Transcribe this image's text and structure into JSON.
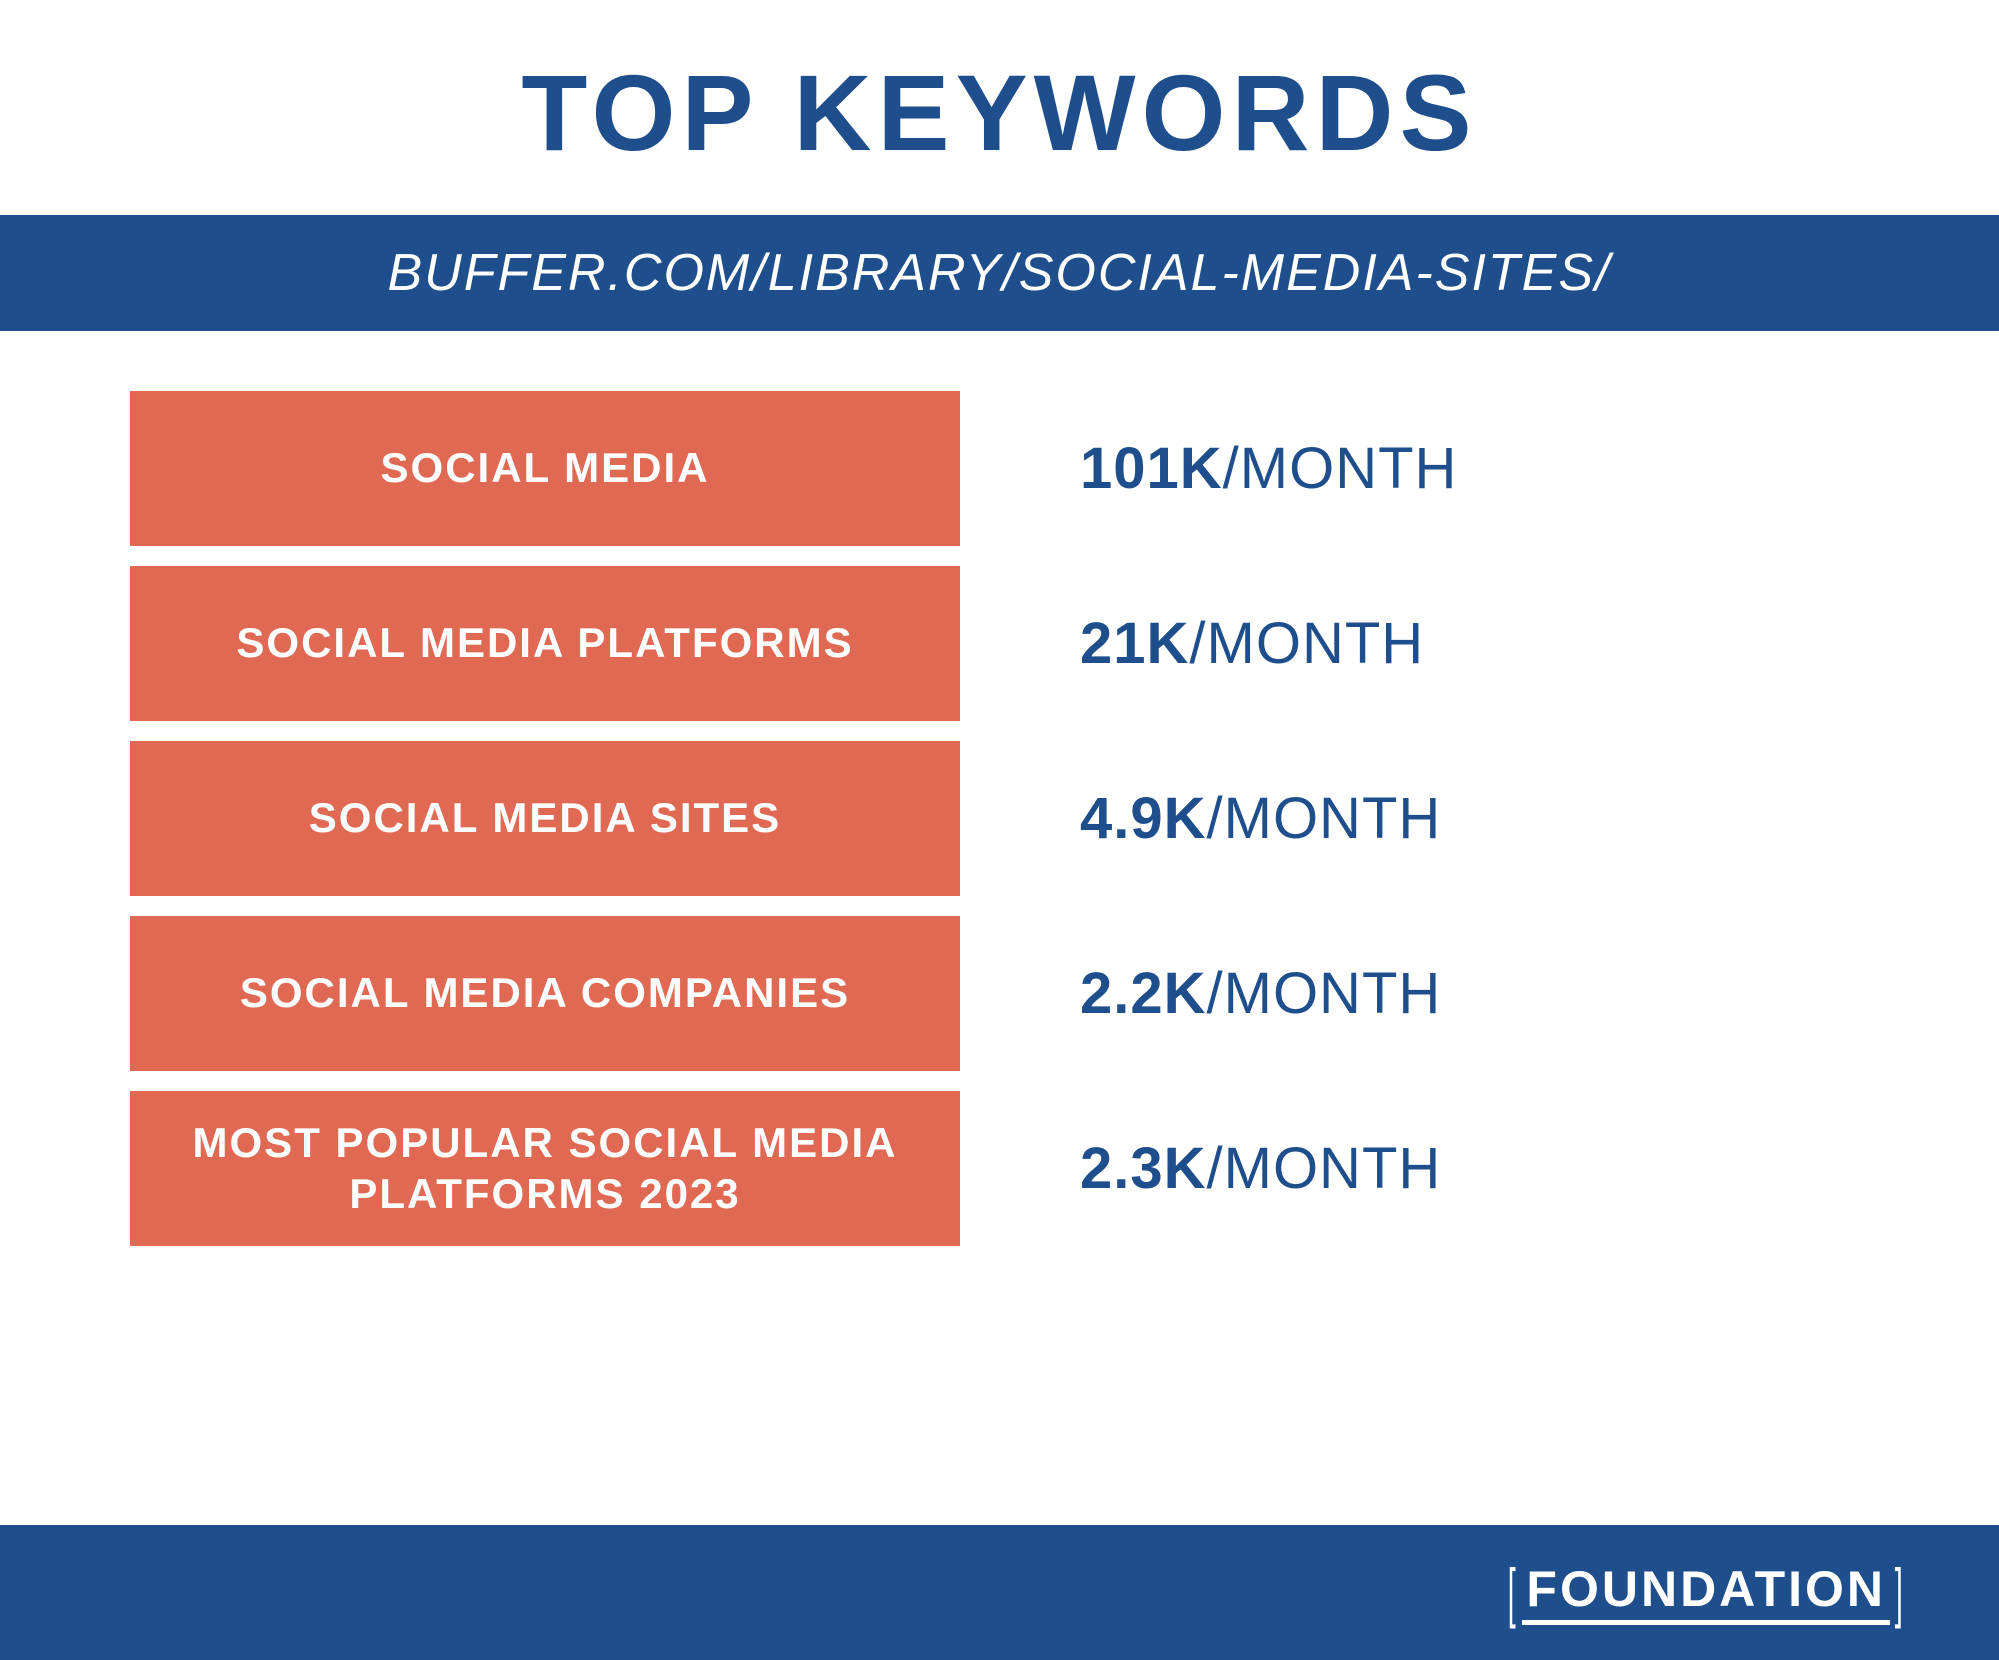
{
  "styling": {
    "background_color": "#ffffff",
    "title_color": "#1f4e8c",
    "title_fontsize": 108,
    "url_bar_bg": "#1f4e8c",
    "url_bar_color": "#ffffff",
    "url_bar_fontsize": 52,
    "keyword_box_bg": "#e06953",
    "keyword_box_color": "#ffffff",
    "keyword_fontsize": 42,
    "value_color": "#1f4e8c",
    "value_fontsize": 58,
    "footer_bg": "#1f4e8c",
    "footer_color": "#ffffff",
    "footer_fontsize": 50
  },
  "title": "TOP KEYWORDS",
  "url": "BUFFER.COM/LIBRARY/SOCIAL-MEDIA-SITES/",
  "keywords": [
    {
      "label": "SOCIAL MEDIA",
      "value": "101K",
      "unit": "/MONTH"
    },
    {
      "label": "SOCIAL MEDIA PLATFORMS",
      "value": "21K",
      "unit": "/MONTH"
    },
    {
      "label": "SOCIAL MEDIA SITES",
      "value": "4.9K",
      "unit": "/MONTH"
    },
    {
      "label": "SOCIAL MEDIA COMPANIES",
      "value": "2.2K",
      "unit": "/MONTH"
    },
    {
      "label": "MOST POPULAR SOCIAL MEDIA PLATFORMS 2023",
      "value": "2.3K",
      "unit": "/MONTH"
    }
  ],
  "footer": {
    "logo_text": "FOUNDATION"
  }
}
